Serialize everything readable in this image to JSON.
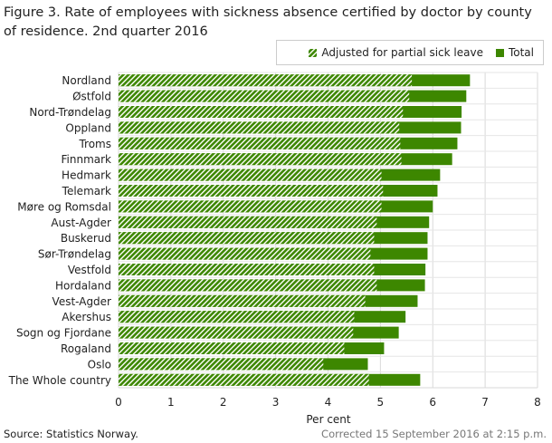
{
  "chart_data": {
    "type": "bar",
    "orientation": "horizontal",
    "stacked": "overlay",
    "title": "Figure 3. Rate of employees with sickness absence certified by doctor by county of residence. 2nd quarter 2016",
    "xlabel": "Per cent",
    "ylabel": "",
    "xlim": [
      0,
      8
    ],
    "xticks": [
      "0",
      "1",
      "2",
      "3",
      "4",
      "5",
      "6",
      "7",
      "8"
    ],
    "grid": true,
    "legend_position": "top-right",
    "categories": [
      "Nordland",
      "Østfold",
      "Nord-Trøndelag",
      "Oppland",
      "Troms",
      "Finnmark",
      "Hedmark",
      "Telemark",
      "Møre og Romsdal",
      "Aust-Agder",
      "Buskerud",
      "Sør-Trøndelag",
      "Vestfold",
      "Hordaland",
      "Vest-Agder",
      "Akershus",
      "Sogn og Fjordane",
      "Rogaland",
      "Oslo",
      "The Whole country"
    ],
    "series": [
      {
        "name": "Adjusted for partial sick leave",
        "pattern": "hatched",
        "color": "#3d8700",
        "values": [
          5.6,
          5.55,
          5.43,
          5.36,
          5.38,
          5.4,
          5.02,
          5.05,
          5.02,
          4.93,
          4.88,
          4.81,
          4.88,
          4.93,
          4.71,
          4.5,
          4.48,
          4.31,
          3.91,
          4.78
        ]
      },
      {
        "name": "Total",
        "pattern": "solid",
        "color": "#3d8700",
        "values": [
          6.71,
          6.64,
          6.55,
          6.54,
          6.47,
          6.37,
          6.14,
          6.09,
          6.0,
          5.93,
          5.9,
          5.9,
          5.86,
          5.85,
          5.71,
          5.48,
          5.35,
          5.07,
          4.76,
          5.76
        ]
      }
    ]
  },
  "footer": {
    "source": "Source: Statistics Norway.",
    "corrected": "Corrected 15 September 2016 at 2:15 p.m."
  }
}
